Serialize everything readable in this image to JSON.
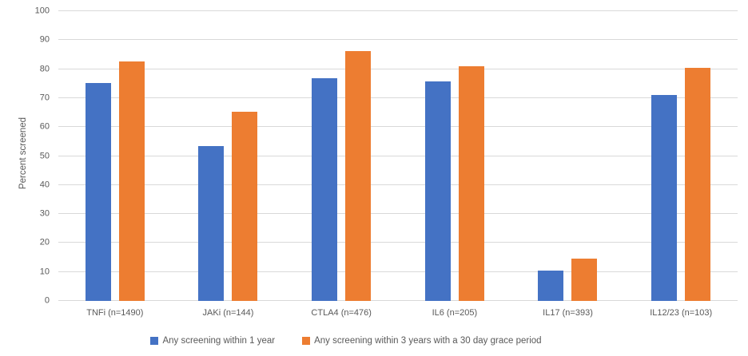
{
  "chart_data": {
    "type": "bar",
    "title": "",
    "xlabel": "",
    "ylabel": "Percent screened",
    "ylim": [
      0,
      100
    ],
    "yticks": [
      0,
      10,
      20,
      30,
      40,
      50,
      60,
      70,
      80,
      90,
      100
    ],
    "grid": true,
    "legend_position": "bottom",
    "categories": [
      "TNFi (n=1490)",
      "JAKi (n=144)",
      "CTLA4 (n=476)",
      "IL6 (n=205)",
      "IL17 (n=393)",
      "IL12/23 (n=103)"
    ],
    "series": [
      {
        "name": "Any screening within 1 year",
        "color": "#4472C4",
        "values": [
          75.3,
          53.5,
          77.0,
          75.7,
          10.4,
          71.0
        ]
      },
      {
        "name": "Any screening within 3 years with a 30 day grace period",
        "color": "#ED7D31",
        "values": [
          82.7,
          65.2,
          86.2,
          81.0,
          14.5,
          80.5
        ]
      }
    ],
    "colors": {
      "gridline": "#D9D9D9",
      "axis_text": "#595959",
      "background": "#FFFFFF"
    }
  }
}
